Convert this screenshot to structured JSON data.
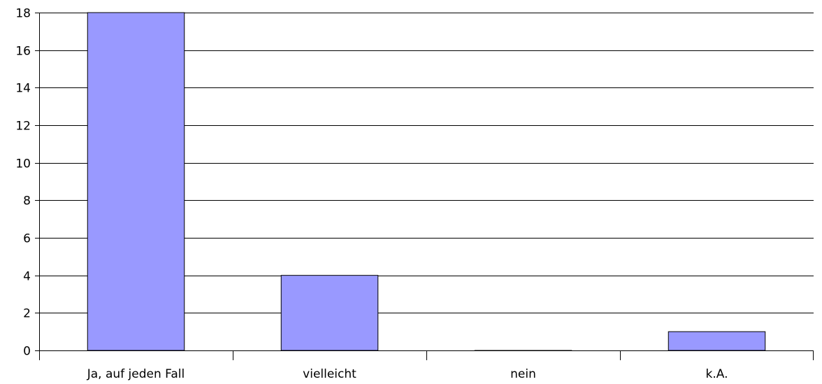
{
  "chart_data": {
    "type": "bar",
    "categories": [
      "Ja, auf jeden Fall",
      "vielleicht",
      "nein",
      "k.A."
    ],
    "values": [
      18,
      4,
      0,
      1
    ],
    "ylim": [
      0,
      18
    ],
    "yticks": [
      0,
      2,
      4,
      6,
      8,
      10,
      12,
      14,
      16,
      18
    ],
    "grid": true,
    "legend": "none",
    "bar_color": "#9999FF",
    "title": "",
    "xlabel": "",
    "ylabel": ""
  }
}
